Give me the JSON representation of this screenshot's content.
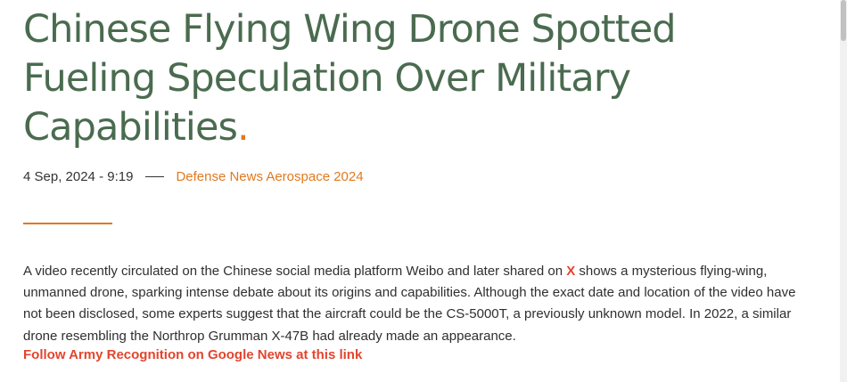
{
  "article": {
    "title_text": "Chinese Flying Wing Drone Spotted Fueling Speculation Over Military Capabilities",
    "title_dot": ".",
    "date": "4 Sep, 2024 - 9:19",
    "category": "Defense News Aerospace 2024",
    "body_before_link": "A video recently circulated on the Chinese social media platform Weibo and later shared on ",
    "body_link": "X",
    "body_after_link": " shows a mysterious flying-wing, unmanned drone, sparking intense debate about its origins and capabilities. Although the exact date and location of the video have not been disclosed, some experts suggest that the aircraft could be the CS-5000T, a previously unknown model. In 2022, a similar drone resembling the Northrop Grumman X-47B had already made an appearance.",
    "follow_link": "Follow Army Recognition on Google News at this link"
  },
  "colors": {
    "title": "#4a6b4f",
    "accent": "#e07a1f",
    "link": "#e2452e"
  }
}
